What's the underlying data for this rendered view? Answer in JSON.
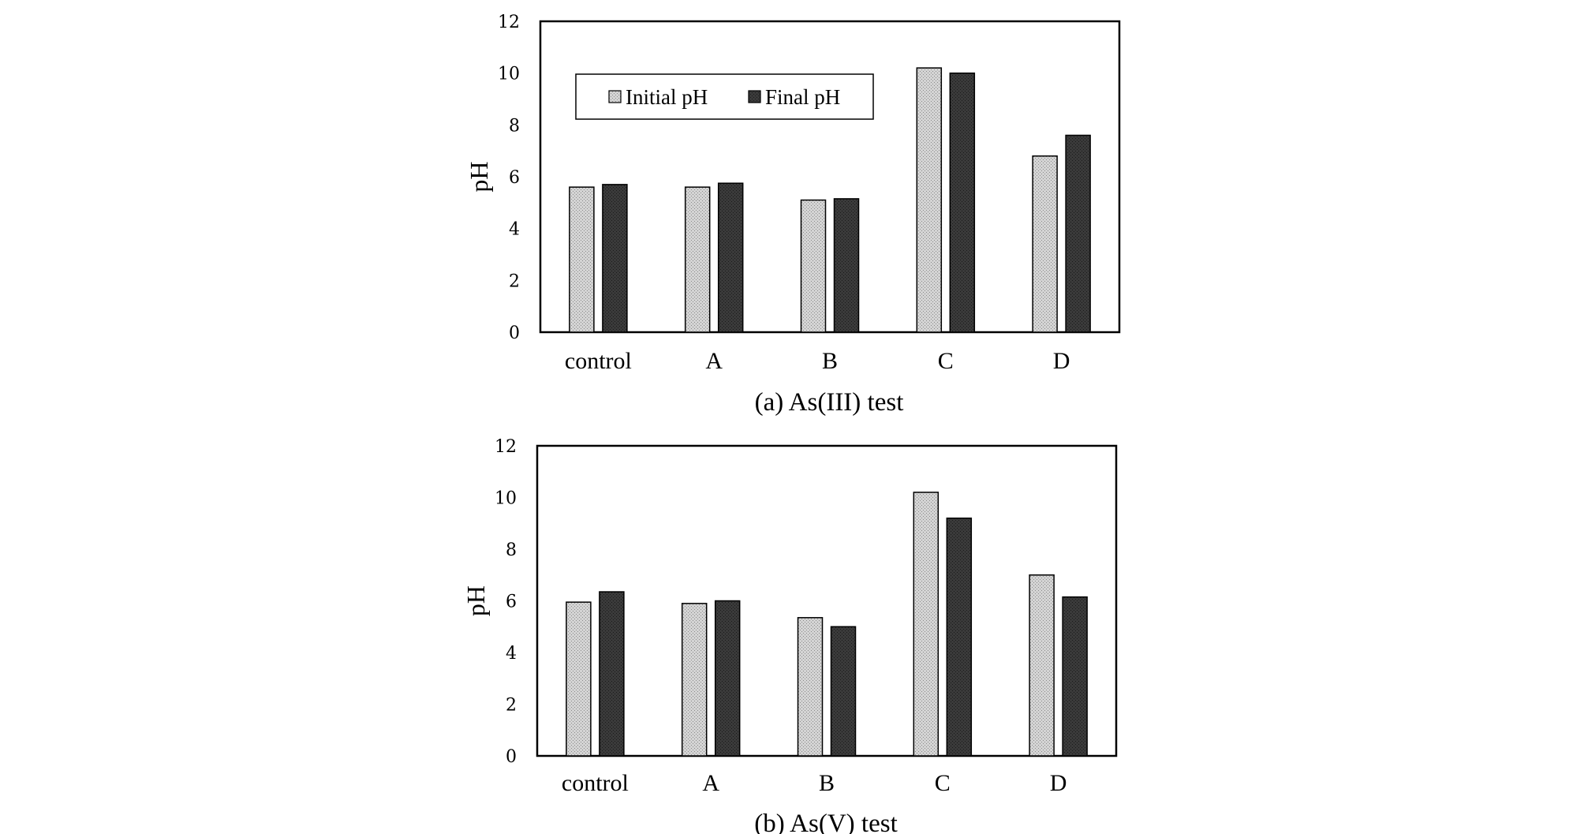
{
  "chart_data": [
    {
      "type": "bar",
      "title": "(a) As(III) test",
      "xlabel": "",
      "ylabel": "pH",
      "ylim": [
        0,
        12
      ],
      "yticks": [
        "0",
        "2",
        "4",
        "6",
        "8",
        "10",
        "12"
      ],
      "categories": [
        "control",
        "A",
        "B",
        "C",
        "D"
      ],
      "series": [
        {
          "name": "Initial pH",
          "values": [
            5.6,
            5.6,
            5.1,
            10.2,
            6.8
          ]
        },
        {
          "name": "Final pH",
          "values": [
            5.7,
            5.75,
            5.15,
            10.0,
            7.6
          ]
        }
      ],
      "legend": {
        "placement": "top-left",
        "visible": true
      }
    },
    {
      "type": "bar",
      "title": "(b) As(V) test",
      "xlabel": "",
      "ylabel": "pH",
      "ylim": [
        0,
        12
      ],
      "yticks": [
        "0",
        "2",
        "4",
        "6",
        "8",
        "10",
        "12"
      ],
      "categories": [
        "control",
        "A",
        "B",
        "C",
        "D"
      ],
      "series": [
        {
          "name": "Initial pH",
          "values": [
            5.95,
            5.9,
            5.35,
            10.2,
            7.0
          ]
        },
        {
          "name": "Final pH",
          "values": [
            6.35,
            6.0,
            5.0,
            9.2,
            6.15
          ]
        }
      ],
      "legend": {
        "placement": "none",
        "visible": false
      }
    }
  ],
  "colors": {
    "initial_fill": "#d4d4d4",
    "initial_dot": "#8a8a8a",
    "final_fill": "#3a3a3a",
    "final_dot": "#1a1a1a",
    "axis": "#000000"
  }
}
